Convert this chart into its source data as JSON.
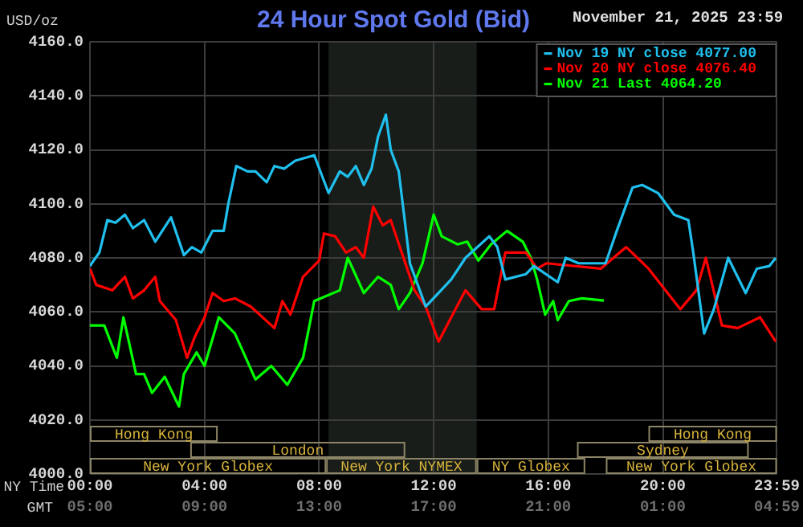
{
  "chart_data": {
    "type": "line",
    "title": "24 Hour Spot Gold (Bid)",
    "subtitle": "November 21, 2025 23:59",
    "ylabel": "USD/oz",
    "xlabel": "NY Time",
    "x2label": "GMT",
    "xlim": [
      0,
      23.98
    ],
    "xticks": [
      {
        "value": 0,
        "label": "00:00"
      },
      {
        "value": 4,
        "label": "04:00"
      },
      {
        "value": 8,
        "label": "08:00"
      },
      {
        "value": 12,
        "label": "12:00"
      },
      {
        "value": 16,
        "label": "16:00"
      },
      {
        "value": 20,
        "label": "20:00"
      },
      {
        "value": 23.98,
        "label": "23:59"
      }
    ],
    "x2lim": [
      "2025-11-21T05:00",
      "2025-11-22T04:59"
    ],
    "x2ticks": [
      {
        "value": "2025-11-21T05:00",
        "label": "05:00"
      },
      {
        "value": "2025-11-21T09:00",
        "label": "09:00"
      },
      {
        "value": "2025-11-21T13:00",
        "label": "13:00"
      },
      {
        "value": "2025-11-21T17:00",
        "label": "17:00"
      },
      {
        "value": "2025-11-21T21:00",
        "label": "21:00"
      },
      {
        "value": "2025-11-22T01:00",
        "label": "01:00"
      },
      {
        "value": "2025-11-22T04:59",
        "label": "04:59"
      }
    ],
    "ylim": [
      4000,
      4160
    ],
    "yticks": [
      {
        "value": 4000,
        "label": "4000.0"
      },
      {
        "value": 4020,
        "label": "4020.0"
      },
      {
        "value": 4040,
        "label": "4040.0"
      },
      {
        "value": 4060,
        "label": "4060.0"
      },
      {
        "value": 4080,
        "label": "4080.0"
      },
      {
        "value": 4100,
        "label": "4100.0"
      },
      {
        "value": 4120,
        "label": "4120.0"
      },
      {
        "value": 4140,
        "label": "4140.0"
      },
      {
        "value": 4160,
        "label": "4160.0"
      }
    ],
    "grid": true,
    "legend": "top right",
    "bands": [
      {
        "axis": "x",
        "from": 8.33,
        "to": 13.5,
        "color": "#191d19"
      }
    ],
    "annotations": [
      "Hong Kong",
      "London",
      "New York Globex",
      "New York NYMEX",
      "NY Globex",
      "Sydney",
      "Hong Kong",
      "New York Globex"
    ],
    "series": [
      {
        "name": "Nov 19 NY close 4077.00",
        "color": "#20c0ee",
        "x": [
          0,
          0.33,
          0.61,
          0.89,
          1.22,
          1.5,
          1.89,
          2.28,
          2.83,
          3.28,
          3.56,
          3.89,
          4.28,
          4.67,
          4.83,
          5.11,
          5.5,
          5.78,
          6.17,
          6.44,
          6.78,
          7.17,
          7.83,
          8.33,
          8.72,
          9,
          9.28,
          9.56,
          9.83,
          10.06,
          10.33,
          10.5,
          10.78,
          11.17,
          11.72,
          12.17,
          12.61,
          13.11,
          13.94,
          14.22,
          14.5,
          15.22,
          15.5,
          16.33,
          16.61,
          17.06,
          18,
          18.39,
          18.94,
          19.28,
          19.83,
          20.39,
          20.89,
          21.06,
          21.44,
          21.78,
          22.28,
          22.89,
          23.28,
          23.72,
          23.94
        ],
        "values": [
          4077,
          4082,
          4094,
          4093,
          4096,
          4091,
          4094,
          4086,
          4095,
          4081,
          4084,
          4082,
          4090,
          4090,
          4100,
          4114,
          4112,
          4112,
          4108,
          4114,
          4113,
          4116,
          4118,
          4104,
          4112,
          4110,
          4114,
          4107,
          4113,
          4125,
          4133,
          4120,
          4112,
          4078,
          4062,
          4067,
          4072,
          4080,
          4088,
          4084,
          4072,
          4074,
          4077,
          4071,
          4080,
          4078,
          4078,
          4090,
          4106,
          4107,
          4104,
          4096,
          4094,
          4082,
          4052,
          4061,
          4080,
          4067,
          4076,
          4077,
          4080
        ]
      },
      {
        "name": "Nov 20 NY close 4076.40",
        "color": "#ff0000",
        "x": [
          0,
          0.22,
          0.78,
          1.22,
          1.5,
          1.89,
          2.28,
          2.44,
          3,
          3.39,
          3.67,
          4,
          4.28,
          4.67,
          5.06,
          5.61,
          6.44,
          6.72,
          7,
          7.44,
          8,
          8.17,
          8.56,
          8.94,
          9.28,
          9.56,
          9.89,
          10.22,
          10.5,
          11.33,
          11.72,
          12.17,
          12.61,
          13.11,
          13.67,
          14.11,
          14.5,
          15.22,
          15.61,
          15.94,
          17.83,
          18.72,
          19.5,
          20.61,
          21.17,
          21.5,
          22.06,
          22.61,
          23.39,
          23.94
        ],
        "values": [
          4076,
          4070,
          4068,
          4073,
          4065,
          4068,
          4073,
          4064,
          4057,
          4043,
          4051,
          4058,
          4067,
          4064,
          4065,
          4062,
          4054,
          4064,
          4059,
          4073,
          4079,
          4089,
          4088,
          4082,
          4084,
          4080,
          4099,
          4092,
          4094,
          4068,
          4062,
          4049,
          4058,
          4068,
          4061,
          4061,
          4082,
          4082,
          4076,
          4078,
          4076,
          4084,
          4076,
          4061,
          4068,
          4080,
          4055,
          4054,
          4058,
          4049
        ]
      },
      {
        "name": "Nov 21 Last 4064.20",
        "color": "#00ff00",
        "x": [
          0,
          0.5,
          0.94,
          1.17,
          1.61,
          1.89,
          2.17,
          2.61,
          3.11,
          3.28,
          3.72,
          4,
          4.5,
          5.06,
          5.78,
          6.33,
          6.89,
          7.44,
          7.83,
          8.72,
          9,
          9.56,
          10.06,
          10.5,
          10.78,
          11.17,
          11.61,
          12,
          12.28,
          12.83,
          13.17,
          13.56,
          14,
          14.56,
          15.11,
          15.39,
          15.61,
          15.89,
          16.17,
          16.33,
          16.72,
          17.17,
          17.94
        ],
        "values": [
          4055,
          4055,
          4043,
          4058,
          4037,
          4037,
          4030,
          4036,
          4025,
          4037,
          4045,
          4040,
          4058,
          4052,
          4035,
          4040,
          4033,
          4043,
          4064,
          4068,
          4080,
          4067,
          4073,
          4070,
          4061,
          4067,
          4078,
          4096,
          4088,
          4085,
          4086,
          4079,
          4085,
          4090,
          4086,
          4080,
          4072,
          4059,
          4064,
          4057,
          4064,
          4065,
          4064.2
        ]
      }
    ]
  }
}
